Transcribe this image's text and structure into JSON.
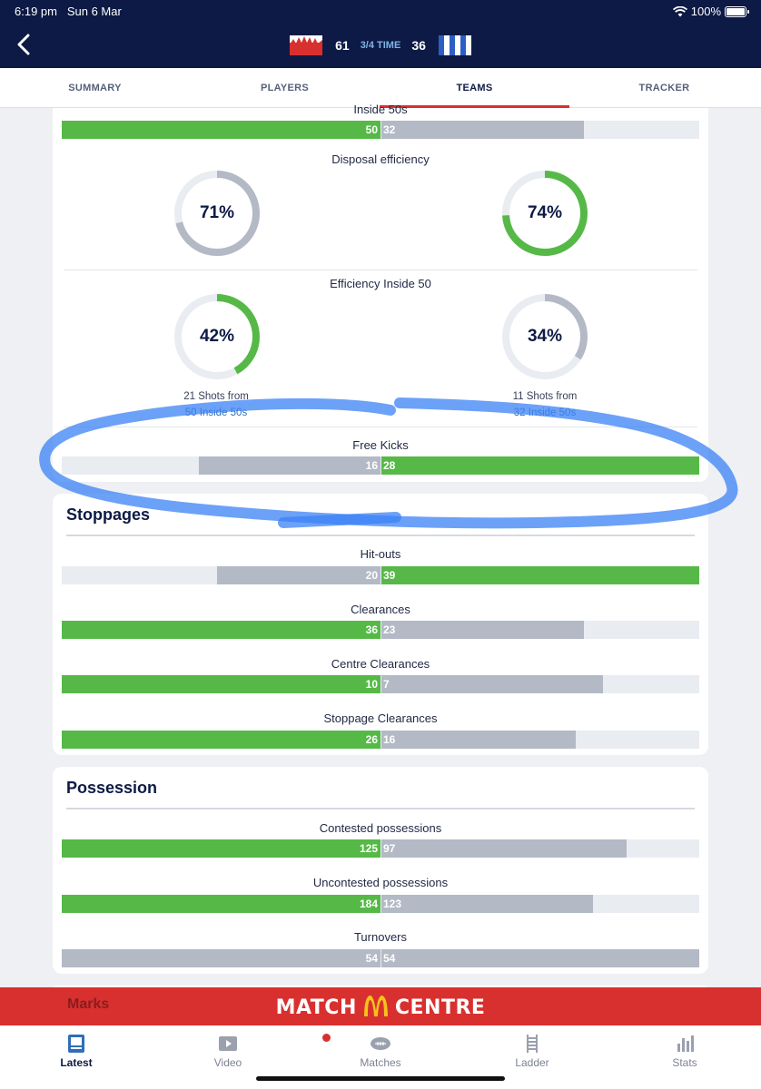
{
  "status": {
    "time": "6:19 pm",
    "date": "Sun 6 Mar",
    "battery": "100%"
  },
  "header": {
    "home_score": "61",
    "period": "3/4 TIME",
    "away_score": "36"
  },
  "tabs": [
    {
      "label": "SUMMARY"
    },
    {
      "label": "PLAYERS"
    },
    {
      "label": "TEAMS"
    },
    {
      "label": "TRACKER"
    }
  ],
  "active_tab": "TEAMS",
  "top_card": {
    "inside50": {
      "label": "Inside 50s",
      "home": "50",
      "away": "32",
      "home_frac": 0.5,
      "away_frac": 0.32
    },
    "disposal_efficiency": {
      "label": "Disposal efficiency",
      "home": "71%",
      "away": "74%",
      "home_value": 71,
      "away_value": 74
    },
    "efficiency_inside50": {
      "label": "Efficiency Inside 50",
      "home": "42%",
      "away": "34%",
      "home_value": 42,
      "away_value": 34,
      "home_caption_1": "21 Shots from",
      "home_caption_2": "50 Inside 50s",
      "away_caption_1": "11 Shots from",
      "away_caption_2": "32 Inside 50s"
    },
    "free_kicks": {
      "label": "Free Kicks",
      "home": "16",
      "away": "28"
    }
  },
  "stoppages": {
    "title": "Stoppages",
    "rows": [
      {
        "label": "Hit-outs",
        "home": "20",
        "away": "39"
      },
      {
        "label": "Clearances",
        "home": "36",
        "away": "23"
      },
      {
        "label": "Centre Clearances",
        "home": "10",
        "away": "7"
      },
      {
        "label": "Stoppage Clearances",
        "home": "26",
        "away": "16"
      }
    ]
  },
  "possession": {
    "title": "Possession",
    "rows": [
      {
        "label": "Contested possessions",
        "home": "125",
        "away": "97"
      },
      {
        "label": "Uncontested possessions",
        "home": "184",
        "away": "123"
      },
      {
        "label": "Turnovers",
        "home": "54",
        "away": "54"
      }
    ]
  },
  "next_section_peek": "Marks",
  "banner": {
    "left": "MATCH",
    "right": "CENTRE"
  },
  "bottom_nav": [
    {
      "label": "Latest",
      "icon": "latest-icon"
    },
    {
      "label": "Video",
      "icon": "video-icon"
    },
    {
      "label": "Matches",
      "icon": "football-icon"
    },
    {
      "label": "Ladder",
      "icon": "ladder-icon"
    },
    {
      "label": "Stats",
      "icon": "stats-icon"
    }
  ],
  "colors": {
    "navy": "#0d1a45",
    "green": "#56b947",
    "grey": "#b3b9c5",
    "red": "#d8302f",
    "highlight": "#3b82f6"
  }
}
